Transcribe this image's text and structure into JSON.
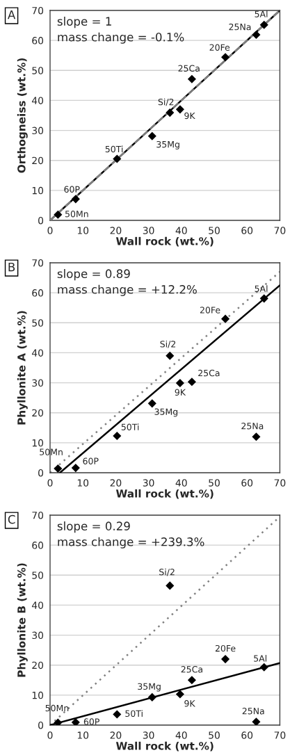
{
  "chart_data": [
    {
      "type": "scatter",
      "xlabel": "Wall rock (wt.%)",
      "ylabel": "Orthogneiss (wt.%)",
      "xlim": [
        0,
        70
      ],
      "ylim": [
        0,
        70
      ],
      "xticks": [
        0,
        10,
        20,
        30,
        40,
        50,
        60,
        70
      ],
      "yticks": [
        0,
        10,
        20,
        30,
        40,
        50,
        60,
        70
      ],
      "grid": "y",
      "legend": false,
      "marker": "diamond",
      "x": [
        2.4,
        7.8,
        20.4,
        31.1,
        36.5,
        39.6,
        43.2,
        53.4,
        62.8,
        65.2
      ],
      "series": [
        {
          "type": "line",
          "x": [
            0,
            70
          ],
          "values": [
            0,
            70
          ],
          "color": "#000000",
          "line_style": "solid",
          "marker": "none"
        },
        {
          "type": "line",
          "x": [
            0,
            70
          ],
          "values": [
            0,
            70
          ],
          "color": "#808080",
          "line_style": "dashed",
          "marker": "none"
        },
        {
          "type": "scatter",
          "color": "#000000",
          "values": [
            1.9,
            7.1,
            20.5,
            28.1,
            35.9,
            37.0,
            47.1,
            54.4,
            61.9,
            65.2
          ]
        }
      ],
      "annotations": [
        "A",
        "slope = 1",
        "mass change = -0.1%",
        {
          "text": "50Mn",
          "x": 2.4,
          "y": 1.9
        },
        {
          "text": "60P",
          "x": 7.8,
          "y": 7.1
        },
        {
          "text": "50Ti",
          "x": 20.4,
          "y": 20.5
        },
        {
          "text": "35Mg",
          "x": 31.1,
          "y": 28.1
        },
        {
          "text": "Si/2",
          "x": 36.5,
          "y": 35.9
        },
        {
          "text": "9K",
          "x": 39.6,
          "y": 37.0
        },
        {
          "text": "25Ca",
          "x": 43.2,
          "y": 47.1
        },
        {
          "text": "20Fe",
          "x": 53.4,
          "y": 54.4
        },
        {
          "text": "25Na",
          "x": 62.8,
          "y": 61.9
        },
        {
          "text": "5Al",
          "x": 65.2,
          "y": 65.2
        }
      ]
    },
    {
      "type": "scatter",
      "xlabel": "Wall rock (wt.%)",
      "ylabel": "Phyllonite A (wt.%)",
      "xlim": [
        0,
        70
      ],
      "ylim": [
        0,
        70
      ],
      "xticks": [
        0,
        10,
        20,
        30,
        40,
        50,
        60,
        70
      ],
      "yticks": [
        0,
        10,
        20,
        30,
        40,
        50,
        60,
        70
      ],
      "grid": "y",
      "legend": false,
      "marker": "diamond",
      "x": [
        2.4,
        7.8,
        20.4,
        31.1,
        36.5,
        39.6,
        43.2,
        53.4,
        62.8,
        65.2
      ],
      "series": [
        {
          "type": "line",
          "x": [
            0,
            70
          ],
          "values": [
            0,
            67
          ],
          "color": "#808080",
          "line_style": "dotted",
          "marker": "none"
        },
        {
          "type": "line",
          "x": [
            3,
            70
          ],
          "values": [
            0,
            62.5
          ],
          "color": "#000000",
          "line_style": "solid",
          "marker": "none"
        },
        {
          "type": "scatter",
          "color": "#000000",
          "values": [
            1.4,
            1.6,
            12.3,
            23.1,
            39.0,
            29.9,
            30.3,
            51.3,
            12.0,
            58.1
          ]
        }
      ],
      "annotations": [
        "B",
        "slope = 0.89",
        "mass change = +12.2%",
        {
          "text": "50Mn",
          "x": 2.4,
          "y": 1.4
        },
        {
          "text": "60P",
          "x": 7.8,
          "y": 1.6
        },
        {
          "text": "50Ti",
          "x": 20.4,
          "y": 12.3
        },
        {
          "text": "35Mg",
          "x": 31.1,
          "y": 23.1
        },
        {
          "text": "Si/2",
          "x": 36.5,
          "y": 39.0
        },
        {
          "text": "9K",
          "x": 39.6,
          "y": 29.9
        },
        {
          "text": "25Ca",
          "x": 43.2,
          "y": 30.3
        },
        {
          "text": "20Fe",
          "x": 53.4,
          "y": 51.3
        },
        {
          "text": "25Na",
          "x": 62.8,
          "y": 12.0
        },
        {
          "text": "5Al",
          "x": 65.2,
          "y": 58.1
        }
      ]
    },
    {
      "type": "scatter",
      "xlabel": "Wall rock (wt.%)",
      "ylabel": "Phyllonite B (wt.%)",
      "xlim": [
        0,
        70
      ],
      "ylim": [
        0,
        70
      ],
      "xticks": [
        0,
        10,
        20,
        30,
        40,
        50,
        60,
        70
      ],
      "yticks": [
        0,
        10,
        20,
        30,
        40,
        50,
        60,
        70
      ],
      "grid": "y",
      "legend": false,
      "marker": "diamond",
      "x": [
        2.4,
        7.8,
        20.4,
        31.1,
        36.5,
        39.6,
        43.2,
        53.4,
        62.8,
        65.2
      ],
      "series": [
        {
          "type": "line",
          "x": [
            0,
            70
          ],
          "values": [
            0,
            69.5
          ],
          "color": "#808080",
          "line_style": "dotted",
          "marker": "none"
        },
        {
          "type": "line",
          "x": [
            0,
            70
          ],
          "values": [
            0,
            20.7
          ],
          "color": "#000000",
          "line_style": "solid",
          "marker": "none"
        },
        {
          "type": "scatter",
          "color": "#000000",
          "values": [
            0.8,
            0.9,
            3.6,
            9.3,
            46.5,
            10.3,
            15.0,
            22.0,
            1.1,
            19.3
          ]
        }
      ],
      "annotations": [
        "C",
        "slope = 0.29",
        "mass change = +239.3%",
        {
          "text": "50Mn",
          "x": 2.4,
          "y": 0.8
        },
        {
          "text": "60P",
          "x": 7.8,
          "y": 0.9
        },
        {
          "text": "50Ti",
          "x": 20.4,
          "y": 3.6
        },
        {
          "text": "35Mg",
          "x": 31.1,
          "y": 9.3
        },
        {
          "text": "Si/2",
          "x": 36.5,
          "y": 46.5
        },
        {
          "text": "9K",
          "x": 39.6,
          "y": 10.3
        },
        {
          "text": "25Ca",
          "x": 43.2,
          "y": 15.0
        },
        {
          "text": "20Fe",
          "x": 53.4,
          "y": 22.0
        },
        {
          "text": "25Na",
          "x": 62.8,
          "y": 1.1
        },
        {
          "text": "5Al",
          "x": 65.2,
          "y": 19.3
        }
      ]
    }
  ]
}
